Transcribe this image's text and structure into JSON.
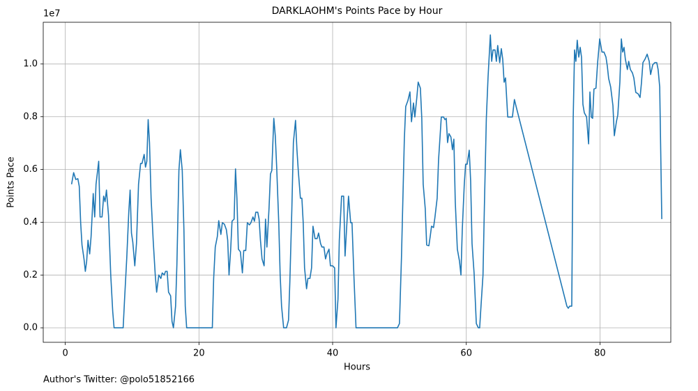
{
  "chart_data": {
    "type": "line",
    "title": "DARKLAOHM's Points Pace by Hour",
    "xlabel": "Hours",
    "ylabel": "Points Pace",
    "y_offset_label": "1e7",
    "footer": "Author's Twitter: @polo51852166",
    "color": "#1f77b4",
    "grid": true,
    "xlim": [
      -3.3,
      90.6
    ],
    "ylim": [
      -550000,
      11580000
    ],
    "xticks": [
      0,
      20,
      40,
      60,
      80
    ],
    "yticks": [
      {
        "value": 0,
        "label": "0.0"
      },
      {
        "value": 2000000,
        "label": "0.2"
      },
      {
        "value": 4000000,
        "label": "0.4"
      },
      {
        "value": 6000000,
        "label": "0.6"
      },
      {
        "value": 8000000,
        "label": "0.8"
      },
      {
        "value": 10000000,
        "label": "1.0"
      }
    ],
    "x": [
      0.94,
      1.25,
      1.57,
      1.88,
      2.09,
      2.3,
      2.5,
      2.8,
      3.0,
      3.2,
      3.4,
      3.65,
      3.86,
      4.18,
      4.4,
      4.6,
      5.0,
      5.2,
      5.5,
      5.74,
      5.95,
      6.16,
      6.47,
      6.8,
      7.1,
      7.3,
      7.93,
      8.66,
      8.87,
      9.2,
      9.5,
      9.7,
      9.9,
      10.1,
      10.4,
      10.65,
      10.96,
      11.27,
      11.48,
      11.8,
      12.0,
      12.2,
      12.4,
      12.6,
      12.84,
      13.15,
      13.46,
      13.67,
      13.99,
      14.3,
      14.5,
      14.8,
      15.0,
      15.24,
      15.45,
      15.76,
      15.97,
      16.18,
      16.5,
      16.7,
      17.0,
      17.22,
      17.5,
      17.75,
      17.95,
      18.16,
      19.4,
      21.5,
      22.0,
      22.2,
      22.44,
      22.75,
      22.96,
      23.28,
      23.5,
      23.8,
      24.1,
      24.3,
      24.5,
      24.74,
      24.95,
      25.26,
      25.47,
      25.68,
      25.9,
      26.2,
      26.5,
      26.7,
      27.0,
      27.24,
      27.56,
      27.77,
      28.08,
      28.3,
      28.5,
      28.8,
      29.0,
      29.2,
      29.44,
      29.75,
      29.96,
      30.17,
      30.48,
      30.7,
      30.9,
      31.2,
      31.42,
      31.63,
      31.94,
      32.15,
      32.36,
      32.67,
      33.1,
      33.4,
      33.6,
      33.9,
      34.13,
      34.45,
      34.66,
      34.86,
      35.18,
      35.4,
      35.6,
      35.8,
      36.1,
      36.3,
      36.6,
      36.85,
      37.06,
      37.37,
      37.68,
      37.9,
      38.2,
      38.4,
      38.7,
      38.94,
      39.14,
      39.46,
      39.67,
      40.0,
      40.3,
      40.5,
      40.8,
      41.0,
      41.34,
      41.65,
      41.86,
      42.17,
      42.38,
      42.7,
      42.9,
      43.2,
      43.5,
      46.56,
      49.7,
      50.0,
      50.3,
      50.73,
      50.94,
      51.25,
      51.57,
      51.8,
      52.1,
      52.3,
      52.6,
      52.8,
      53.13,
      53.34,
      53.55,
      53.86,
      54.07,
      54.4,
      54.6,
      54.8,
      55.1,
      55.3,
      55.64,
      55.85,
      56.05,
      56.26,
      56.6,
      56.8,
      57.0,
      57.2,
      57.4,
      57.7,
      57.93,
      58.14,
      58.35,
      58.66,
      58.98,
      59.2,
      59.4,
      59.7,
      59.9,
      60.13,
      60.44,
      60.65,
      60.86,
      61.17,
      61.5,
      61.8,
      62.0,
      62.2,
      62.5,
      62.7,
      63.0,
      63.26,
      63.6,
      63.8,
      64.0,
      64.3,
      64.5,
      64.7,
      65.0,
      65.24,
      65.45,
      65.66,
      65.87,
      66.2,
      66.6,
      66.9,
      67.2,
      67.5,
      75.05,
      75.26,
      75.47,
      75.78,
      76.0,
      76.2,
      76.4,
      76.6,
      76.83,
      77.04,
      77.24,
      77.45,
      77.66,
      78.0,
      78.3,
      78.5,
      78.7,
      78.9,
      79.1,
      79.4,
      79.65,
      79.96,
      80.3,
      80.6,
      80.9,
      81.1,
      81.3,
      81.6,
      81.94,
      82.15,
      82.46,
      82.67,
      82.98,
      83.2,
      83.4,
      83.6,
      83.8,
      84.1,
      84.3,
      84.55,
      84.86,
      85.07,
      85.36,
      85.7,
      86.0,
      86.2,
      86.43,
      86.74,
      87.06,
      87.37,
      87.58,
      87.9,
      88.2,
      88.5,
      88.7,
      88.94,
      89.25
    ],
    "values": [
      5440000,
      5880000,
      5620000,
      5650000,
      5360000,
      3980000,
      3140000,
      2610000,
      2140000,
      2530000,
      3320000,
      2800000,
      3460000,
      5090000,
      4200000,
      5440000,
      6310000,
      4200000,
      4200000,
      4990000,
      4780000,
      5220000,
      4250000,
      2000000,
      610000,
      0,
      0,
      0,
      1080000,
      2660000,
      4380000,
      5220000,
      3590000,
      3250000,
      2350000,
      3190000,
      5440000,
      6230000,
      6230000,
      6570000,
      6090000,
      6310000,
      7890000,
      7020000,
      4910000,
      3320000,
      2000000,
      1350000,
      2000000,
      1870000,
      2080000,
      2000000,
      2140000,
      2140000,
      1350000,
      1210000,
      240000,
      0,
      820000,
      2400000,
      5960000,
      6750000,
      5960000,
      3720000,
      820000,
      0,
      0,
      0,
      0,
      1870000,
      3060000,
      3460000,
      4060000,
      3540000,
      3980000,
      3930000,
      3720000,
      3320000,
      2000000,
      2930000,
      4040000,
      4120000,
      6020000,
      4910000,
      2980000,
      2880000,
      2080000,
      2930000,
      2930000,
      3980000,
      3900000,
      3980000,
      4200000,
      4040000,
      4380000,
      4380000,
      4120000,
      3320000,
      2610000,
      2350000,
      4120000,
      3060000,
      4510000,
      5830000,
      5960000,
      7940000,
      7280000,
      6090000,
      3980000,
      2000000,
      820000,
      0,
      0,
      290000,
      1740000,
      4510000,
      7020000,
      7860000,
      6750000,
      5960000,
      4910000,
      4910000,
      3980000,
      2270000,
      1480000,
      1870000,
      1870000,
      2270000,
      3850000,
      3380000,
      3380000,
      3590000,
      3190000,
      3060000,
      3060000,
      2610000,
      2800000,
      2980000,
      2350000,
      2350000,
      2270000,
      0,
      1080000,
      3320000,
      4990000,
      4990000,
      2720000,
      4120000,
      4990000,
      3980000,
      3980000,
      1870000,
      0,
      0,
      0,
      160000,
      2660000,
      7150000,
      8390000,
      8600000,
      8940000,
      7810000,
      8520000,
      7990000,
      8730000,
      9310000,
      9080000,
      7940000,
      5440000,
      4510000,
      3140000,
      3110000,
      3460000,
      3850000,
      3800000,
      4170000,
      4910000,
      6360000,
      7150000,
      7990000,
      7990000,
      7890000,
      7940000,
      7020000,
      7360000,
      7230000,
      6750000,
      7150000,
      4780000,
      2980000,
      2530000,
      2000000,
      3720000,
      5440000,
      6200000,
      6200000,
      6730000,
      5570000,
      3190000,
      2060000,
      160000,
      0,
      0,
      820000,
      2000000,
      4510000,
      7940000,
      9520000,
      11100000,
      10100000,
      10530000,
      10530000,
      10100000,
      10700000,
      10050000,
      10580000,
      10180000,
      9310000,
      9470000,
      7990000,
      7990000,
      7990000,
      8650000,
      8340000,
      820000,
      740000,
      820000,
      820000,
      7990000,
      10530000,
      10100000,
      10900000,
      10260000,
      10630000,
      10260000,
      8470000,
      8150000,
      7990000,
      6970000,
      8940000,
      7990000,
      7940000,
      9050000,
      9080000,
      10050000,
      10950000,
      10450000,
      10450000,
      10260000,
      9920000,
      9450000,
      9130000,
      8420000,
      7280000,
      7810000,
      8070000,
      9310000,
      10950000,
      10450000,
      10630000,
      10180000,
      9790000,
      10100000,
      9790000,
      9660000,
      9470000,
      8920000,
      8870000,
      8730000,
      9260000,
      10050000,
      10180000,
      10370000,
      10100000,
      9600000,
      9970000,
      10050000,
      10050000,
      9790000,
      9130000,
      4120000
    ]
  }
}
